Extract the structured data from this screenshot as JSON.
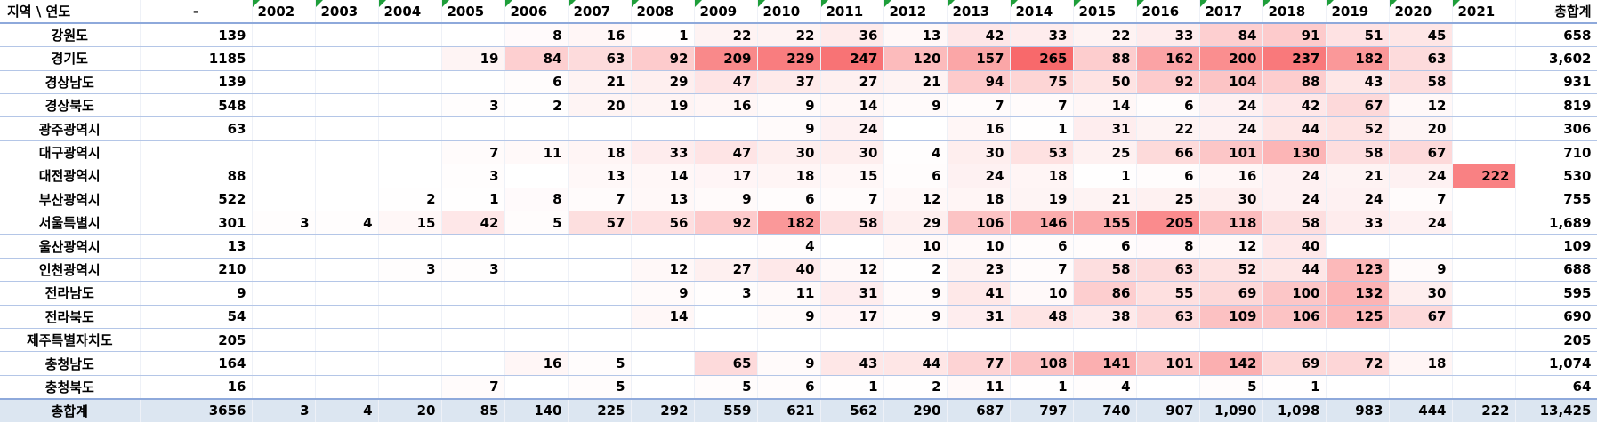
{
  "table": {
    "header": [
      "지역 \\ 연도",
      "-",
      "2002",
      "2003",
      "2004",
      "2005",
      "2006",
      "2007",
      "2008",
      "2009",
      "2010",
      "2011",
      "2012",
      "2013",
      "2014",
      "2015",
      "2016",
      "2017",
      "2018",
      "2019",
      "2020",
      "2021",
      "총합계"
    ],
    "rows": [
      [
        "강원도",
        139,
        null,
        null,
        null,
        null,
        8,
        16,
        1,
        22,
        22,
        36,
        13,
        42,
        33,
        22,
        33,
        84,
        91,
        51,
        45,
        null,
        658
      ],
      [
        "경기도",
        1185,
        null,
        null,
        null,
        19,
        84,
        63,
        92,
        209,
        229,
        247,
        120,
        157,
        265,
        88,
        162,
        200,
        237,
        182,
        63,
        null,
        "3,602"
      ],
      [
        "경상남도",
        139,
        null,
        null,
        null,
        null,
        6,
        21,
        29,
        47,
        37,
        27,
        21,
        94,
        75,
        50,
        92,
        104,
        88,
        43,
        58,
        null,
        931
      ],
      [
        "경상북도",
        548,
        null,
        null,
        null,
        3,
        2,
        20,
        19,
        16,
        9,
        14,
        9,
        7,
        7,
        14,
        6,
        24,
        42,
        67,
        12,
        null,
        819
      ],
      [
        "광주광역시",
        63,
        null,
        null,
        null,
        null,
        null,
        null,
        null,
        null,
        9,
        24,
        null,
        16,
        1,
        31,
        22,
        24,
        44,
        52,
        20,
        null,
        306
      ],
      [
        "대구광역시",
        null,
        null,
        null,
        null,
        7,
        11,
        18,
        33,
        47,
        30,
        30,
        4,
        30,
        53,
        25,
        66,
        101,
        130,
        58,
        67,
        null,
        710
      ],
      [
        "대전광역시",
        88,
        null,
        null,
        null,
        3,
        null,
        13,
        14,
        17,
        18,
        15,
        6,
        24,
        18,
        1,
        6,
        16,
        24,
        21,
        24,
        222,
        530
      ],
      [
        "부산광역시",
        522,
        null,
        null,
        2,
        1,
        8,
        7,
        13,
        9,
        6,
        7,
        12,
        18,
        19,
        21,
        25,
        30,
        24,
        24,
        7,
        null,
        755
      ],
      [
        "서울특별시",
        301,
        3,
        4,
        15,
        42,
        5,
        57,
        56,
        92,
        182,
        58,
        29,
        106,
        146,
        155,
        205,
        118,
        58,
        33,
        24,
        null,
        "1,689"
      ],
      [
        "울산광역시",
        13,
        null,
        null,
        null,
        null,
        null,
        null,
        null,
        null,
        4,
        null,
        10,
        10,
        6,
        6,
        8,
        12,
        40,
        null,
        null,
        null,
        109
      ],
      [
        "인천광역시",
        210,
        null,
        null,
        3,
        3,
        null,
        null,
        12,
        27,
        40,
        12,
        2,
        23,
        7,
        58,
        63,
        52,
        44,
        123,
        9,
        null,
        688
      ],
      [
        "전라남도",
        9,
        null,
        null,
        null,
        null,
        null,
        null,
        9,
        3,
        11,
        31,
        9,
        41,
        10,
        86,
        55,
        69,
        100,
        132,
        30,
        null,
        595
      ],
      [
        "전라북도",
        54,
        null,
        null,
        null,
        null,
        null,
        null,
        14,
        null,
        9,
        17,
        9,
        31,
        48,
        38,
        63,
        109,
        106,
        125,
        67,
        null,
        690
      ],
      [
        "제주특별자치도",
        205,
        null,
        null,
        null,
        null,
        null,
        null,
        null,
        null,
        null,
        null,
        null,
        null,
        null,
        null,
        null,
        null,
        null,
        null,
        null,
        null,
        205
      ],
      [
        "충청남도",
        164,
        null,
        null,
        null,
        null,
        16,
        5,
        null,
        65,
        9,
        43,
        44,
        77,
        108,
        141,
        101,
        142,
        69,
        72,
        18,
        null,
        "1,074"
      ],
      [
        "충청북도",
        16,
        null,
        null,
        null,
        7,
        null,
        5,
        null,
        5,
        6,
        1,
        2,
        11,
        1,
        4,
        null,
        5,
        1,
        null,
        null,
        null,
        64
      ],
      [
        "총합계",
        3656,
        3,
        4,
        20,
        85,
        140,
        225,
        292,
        559,
        621,
        562,
        290,
        687,
        797,
        740,
        907,
        "1,090",
        "1,098",
        983,
        444,
        222,
        "13,425"
      ]
    ]
  }
}
